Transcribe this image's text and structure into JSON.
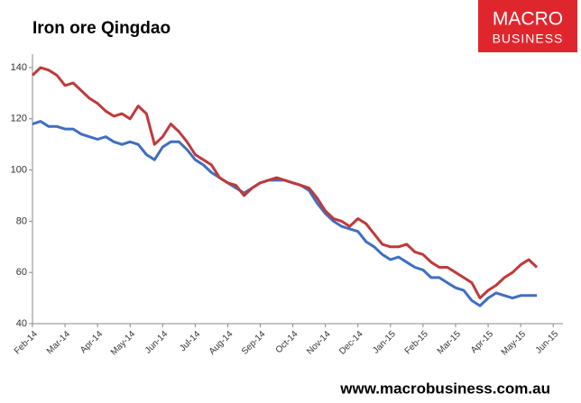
{
  "chart_data": {
    "type": "line",
    "title": "Iron ore Qingdao",
    "x": [
      0,
      0.25,
      0.5,
      0.75,
      1,
      1.25,
      1.5,
      1.75,
      2,
      2.25,
      2.5,
      2.75,
      3,
      3.25,
      3.5,
      3.75,
      4,
      4.25,
      4.5,
      4.75,
      5,
      5.25,
      5.5,
      5.75,
      6,
      6.25,
      6.5,
      6.75,
      7,
      7.25,
      7.5,
      7.75,
      8,
      8.25,
      8.5,
      8.75,
      9,
      9.25,
      9.5,
      9.75,
      10,
      10.25,
      10.5,
      10.75,
      11,
      11.25,
      11.5,
      11.75,
      12,
      12.25,
      12.5,
      12.75,
      13,
      13.25,
      13.5,
      13.75,
      14,
      14.25,
      14.5,
      14.75,
      15,
      15.25,
      15.5
    ],
    "series": [
      {
        "color": "#c0393b",
        "values": [
          137,
          140,
          139,
          137,
          133,
          134,
          131,
          128,
          126,
          123,
          121,
          122,
          120,
          125,
          122,
          110,
          113,
          118,
          115,
          111,
          106,
          104,
          102,
          97,
          95,
          94,
          90,
          93,
          95,
          96,
          97,
          96,
          95,
          94,
          93,
          89,
          84,
          81,
          80,
          78,
          81,
          79,
          75,
          71,
          70,
          70,
          71,
          68,
          67,
          64,
          62,
          62,
          60,
          58,
          56,
          50,
          53,
          55,
          58,
          60,
          63,
          65,
          62
        ]
      },
      {
        "color": "#3f6fbf",
        "values": [
          118,
          119,
          117,
          117,
          116,
          116,
          114,
          113,
          112,
          113,
          111,
          110,
          111,
          110,
          106,
          104,
          109,
          111,
          111,
          108,
          104,
          102,
          99,
          97,
          95,
          93,
          91,
          93,
          95,
          96,
          96,
          96,
          95,
          94,
          92,
          87,
          83,
          80,
          78,
          77,
          76,
          72,
          70,
          67,
          65,
          66,
          64,
          62,
          61,
          58,
          58,
          56,
          54,
          53,
          49,
          47,
          50,
          52,
          51,
          50,
          51,
          51,
          51
        ]
      }
    ],
    "xlim": [
      0,
      16.3
    ],
    "xticks": [
      {
        "value": 0,
        "label": "Feb-14"
      },
      {
        "value": 1,
        "label": "Mar-14"
      },
      {
        "value": 2,
        "label": "Apr-14"
      },
      {
        "value": 3,
        "label": "May-14"
      },
      {
        "value": 4,
        "label": "Jun-14"
      },
      {
        "value": 5,
        "label": "Jul-14"
      },
      {
        "value": 6,
        "label": "Aug-14"
      },
      {
        "value": 7,
        "label": "Sep-14"
      },
      {
        "value": 8,
        "label": "Oct-14"
      },
      {
        "value": 9,
        "label": "Nov-14"
      },
      {
        "value": 10,
        "label": "Dec-14"
      },
      {
        "value": 11,
        "label": "Jan-15"
      },
      {
        "value": 12,
        "label": "Feb-15"
      },
      {
        "value": 13,
        "label": "Mar-15"
      },
      {
        "value": 14,
        "label": "Apr-15"
      },
      {
        "value": 15,
        "label": "May-15"
      },
      {
        "value": 16,
        "label": "Jun-15"
      }
    ],
    "ylim": [
      40,
      144
    ],
    "yticks": [
      40,
      60,
      80,
      100,
      120,
      140
    ],
    "grid": false
  },
  "logo": {
    "line1": "MACRO",
    "line2": "BUSINESS"
  },
  "footer": "www.macrobusiness.com.au"
}
